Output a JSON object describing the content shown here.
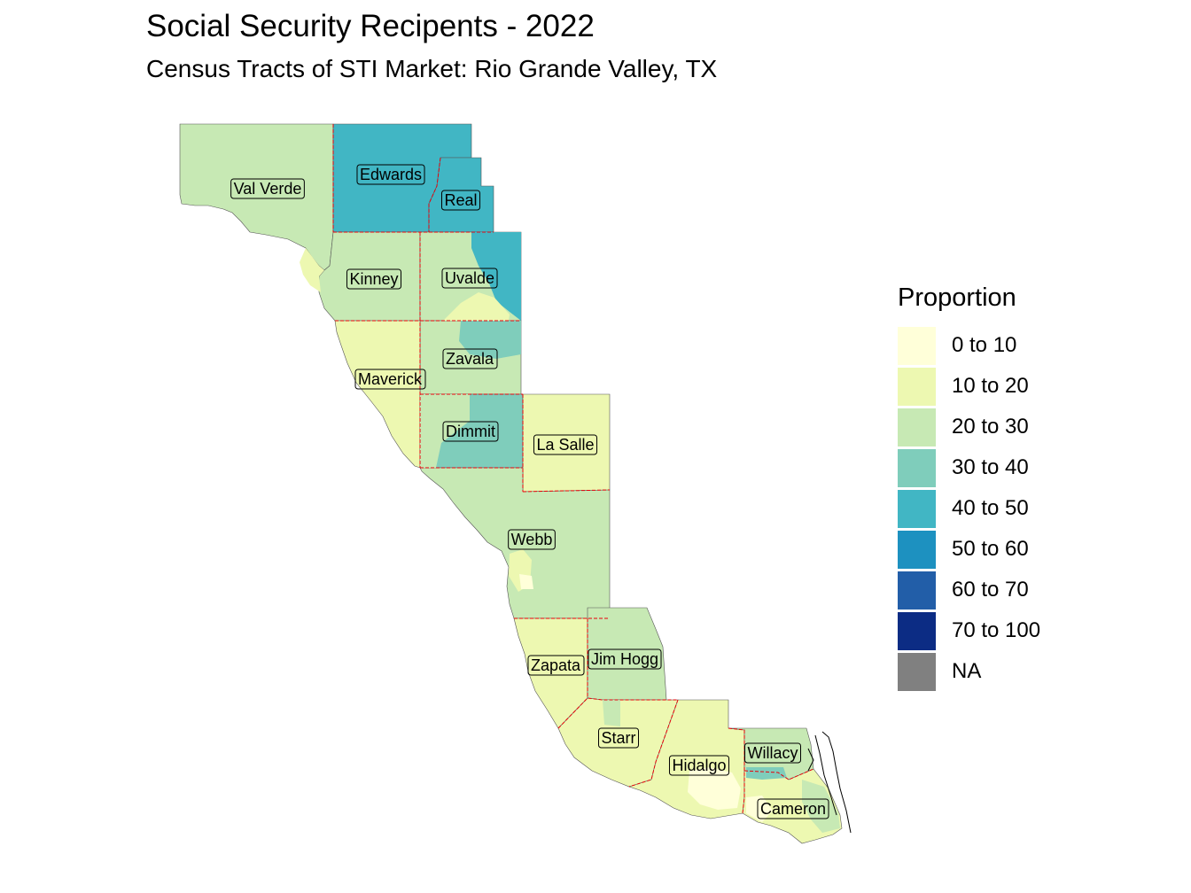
{
  "title": "Social Security Recipents - 2022",
  "subtitle": "Census Tracts of STI Market: Rio Grande Valley, TX",
  "legend": {
    "title": "Proportion",
    "items": [
      {
        "label": "0 to 10",
        "color": "#ffffd9"
      },
      {
        "label": "10 to 20",
        "color": "#edf8b1"
      },
      {
        "label": "20 to 30",
        "color": "#c7e9b4"
      },
      {
        "label": "30 to 40",
        "color": "#7fcdbb"
      },
      {
        "label": "40 to 50",
        "color": "#41b6c4"
      },
      {
        "label": "50 to 60",
        "color": "#1d91c0"
      },
      {
        "label": "60 to 70",
        "color": "#225ea8"
      },
      {
        "label": "70 to 100",
        "color": "#0c2c84"
      },
      {
        "label": "NA",
        "color": "#808080"
      }
    ]
  },
  "counties": [
    {
      "name": "Val Verde",
      "fill_class": "20 to 30"
    },
    {
      "name": "Edwards",
      "fill_class": "40 to 50"
    },
    {
      "name": "Real",
      "fill_class": "40 to 50"
    },
    {
      "name": "Kinney",
      "fill_class": "20 to 30"
    },
    {
      "name": "Uvalde",
      "fill_class": "20 to 30"
    },
    {
      "name": "Zavala",
      "fill_class": "20 to 30"
    },
    {
      "name": "Maverick",
      "fill_class": "10 to 20"
    },
    {
      "name": "Dimmit",
      "fill_class": "30 to 40"
    },
    {
      "name": "La Salle",
      "fill_class": "10 to 20"
    },
    {
      "name": "Webb",
      "fill_class": "20 to 30"
    },
    {
      "name": "Zapata",
      "fill_class": "10 to 20"
    },
    {
      "name": "Jim Hogg",
      "fill_class": "20 to 30"
    },
    {
      "name": "Starr",
      "fill_class": "10 to 20"
    },
    {
      "name": "Hidalgo",
      "fill_class": "10 to 20"
    },
    {
      "name": "Willacy",
      "fill_class": "20 to 30"
    },
    {
      "name": "Cameron",
      "fill_class": "10 to 20"
    }
  ]
}
